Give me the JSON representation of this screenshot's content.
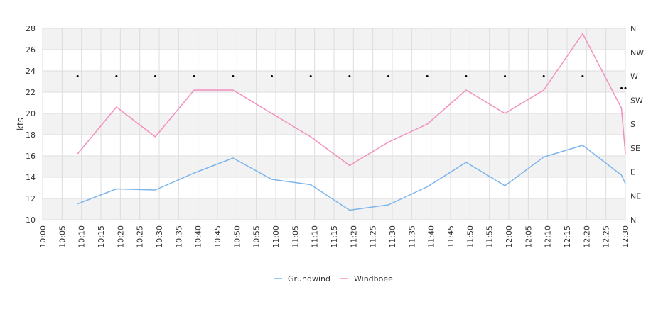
{
  "chart_data": {
    "type": "line",
    "xlabel": "",
    "ylabel": "kts",
    "ylim": [
      10,
      28
    ],
    "grid": true,
    "legend_position": "bottom-center",
    "x_ticks": [
      "10:00",
      "10:05",
      "10:10",
      "10:15",
      "10:20",
      "10:25",
      "10:30",
      "10:35",
      "10:40",
      "10:45",
      "10:50",
      "10:55",
      "11:00",
      "11:05",
      "11:10",
      "11:15",
      "11:20",
      "11:25",
      "11:30",
      "11:35",
      "11:40",
      "11:45",
      "11:50",
      "11:55",
      "12:00",
      "12:05",
      "12:10",
      "12:15",
      "12:20",
      "12:25",
      "12:30"
    ],
    "y_ticks": [
      10,
      12,
      14,
      16,
      18,
      20,
      22,
      24,
      26,
      28
    ],
    "y2_ticks": [
      "N",
      "NE",
      "E",
      "SE",
      "S",
      "SW",
      "W",
      "NW",
      "N"
    ],
    "series": [
      {
        "name": "Grundwind",
        "color": "#7cb5ec",
        "points": [
          [
            "10:09",
            11.5
          ],
          [
            "10:19",
            12.9
          ],
          [
            "10:29",
            12.8
          ],
          [
            "10:39",
            14.4
          ],
          [
            "10:49",
            15.8
          ],
          [
            "10:59",
            13.8
          ],
          [
            "11:09",
            13.3
          ],
          [
            "11:19",
            10.9
          ],
          [
            "11:29",
            11.4
          ],
          [
            "11:39",
            13.1
          ],
          [
            "11:49",
            15.4
          ],
          [
            "11:59",
            13.2
          ],
          [
            "12:09",
            15.9
          ],
          [
            "12:19",
            17.0
          ],
          [
            "12:29",
            14.2
          ],
          [
            "12:30",
            13.4
          ]
        ]
      },
      {
        "name": "Windboee",
        "color": "#f28fbf",
        "points": [
          [
            "10:09",
            16.2
          ],
          [
            "10:19",
            20.6
          ],
          [
            "10:29",
            17.8
          ],
          [
            "10:39",
            22.2
          ],
          [
            "10:49",
            22.2
          ],
          [
            "10:59",
            20.0
          ],
          [
            "11:09",
            17.8
          ],
          [
            "11:19",
            15.1
          ],
          [
            "11:29",
            17.3
          ],
          [
            "11:39",
            19.0
          ],
          [
            "11:49",
            22.2
          ],
          [
            "11:59",
            20.0
          ],
          [
            "12:09",
            22.2
          ],
          [
            "12:19",
            27.5
          ],
          [
            "12:29",
            20.5
          ],
          [
            "12:30",
            16.2
          ]
        ]
      },
      {
        "name": "",
        "type": "scatter",
        "axis": "direction",
        "color": "#000000",
        "points": [
          [
            "10:09",
            "W"
          ],
          [
            "10:19",
            "W"
          ],
          [
            "10:29",
            "W"
          ],
          [
            "10:39",
            "W"
          ],
          [
            "10:49",
            "W"
          ],
          [
            "10:59",
            "W"
          ],
          [
            "11:09",
            "W"
          ],
          [
            "11:19",
            "W"
          ],
          [
            "11:29",
            "W"
          ],
          [
            "11:39",
            "W"
          ],
          [
            "11:49",
            "W"
          ],
          [
            "11:59",
            "W"
          ],
          [
            "12:09",
            "W"
          ],
          [
            "12:19",
            "W"
          ],
          [
            "12:29",
            "WSW"
          ],
          [
            "12:30",
            "WSW"
          ]
        ]
      }
    ]
  }
}
